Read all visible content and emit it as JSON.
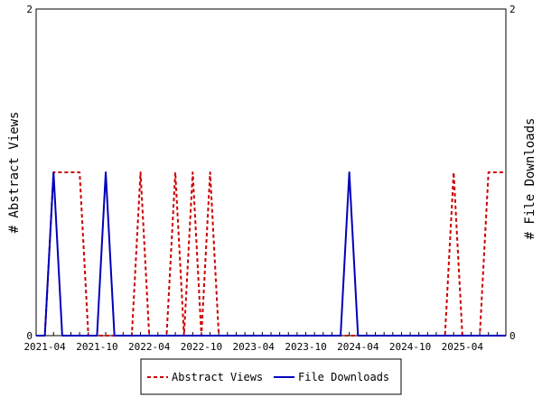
{
  "chart_data": {
    "type": "line",
    "x_axis": {
      "start": "2021-03",
      "months": 55,
      "tick_labels": [
        "2021-04",
        "2021-10",
        "2022-04",
        "2022-10",
        "2023-04",
        "2023-10",
        "2024-04",
        "2024-10",
        "2025-04"
      ]
    },
    "y_left": {
      "label": "# Abstract Views",
      "ylim": [
        0,
        2
      ],
      "ticks": [
        "0",
        "2"
      ]
    },
    "y_right": {
      "label": "# File Downloads",
      "ylim": [
        0,
        2
      ],
      "ticks": [
        "0",
        "2"
      ]
    },
    "series": [
      {
        "name": "Abstract Views",
        "color": "#cc0000",
        "style": "dashed",
        "axis": "left",
        "values": [
          0,
          0,
          1,
          1,
          1,
          1,
          0,
          0,
          0,
          0,
          0,
          0,
          1,
          0,
          0,
          0,
          1,
          0,
          1,
          0,
          1,
          0,
          0,
          0,
          0,
          0,
          0,
          0,
          0,
          0,
          0,
          0,
          0,
          0,
          0,
          0,
          0,
          0,
          0,
          0,
          0,
          0,
          0,
          0,
          0,
          0,
          0,
          0,
          1,
          0,
          0,
          0,
          1,
          1,
          1
        ]
      },
      {
        "name": "File Downloads",
        "color": "#0000bb",
        "style": "solid",
        "axis": "right",
        "values": [
          0,
          0,
          1,
          0,
          0,
          0,
          0,
          0,
          1,
          0,
          0,
          0,
          0,
          0,
          0,
          0,
          0,
          0,
          0,
          0,
          0,
          0,
          0,
          0,
          0,
          0,
          0,
          0,
          0,
          0,
          0,
          0,
          0,
          0,
          0,
          0,
          1,
          0,
          0,
          0,
          0,
          0,
          0,
          0,
          0,
          0,
          0,
          0,
          0,
          0,
          0,
          0,
          0,
          0,
          0
        ]
      }
    ],
    "legend": {
      "placement": "bottom",
      "entries": [
        "Abstract Views",
        "File Downloads"
      ]
    }
  }
}
